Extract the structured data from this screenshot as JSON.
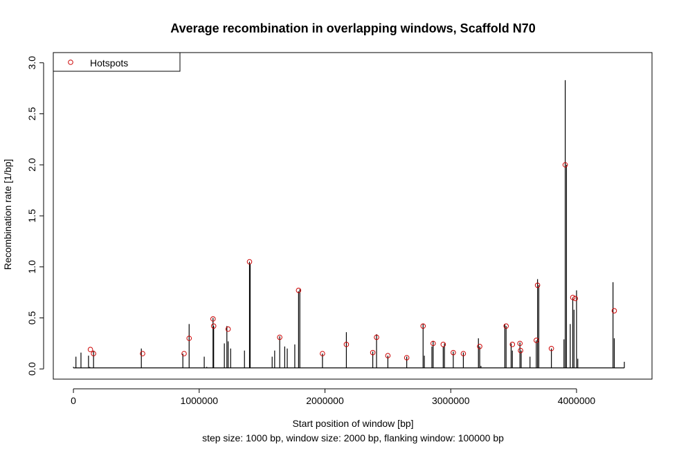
{
  "chart_data": {
    "type": "line",
    "title": "Average recombination in overlapping windows, Scaffold N70",
    "xlabel": "Start position of window [bp]",
    "xlabel_sub": "step size: 1000 bp, window size: 2000 bp, flanking window: 100000 bp",
    "ylabel": "Recombination rate [1/bp]",
    "xlim": [
      -160000,
      4600000
    ],
    "ylim": [
      -0.1,
      3.1
    ],
    "x_ticks": [
      0,
      1000000,
      2000000,
      3000000,
      4000000
    ],
    "x_tick_labels": [
      "0",
      "1000000",
      "2000000",
      "3000000",
      "4000000"
    ],
    "y_ticks": [
      0.0,
      0.5,
      1.0,
      1.5,
      2.0,
      2.5,
      3.0
    ],
    "y_tick_labels": [
      "0.0",
      "0.5",
      "1.0",
      "1.5",
      "2.0",
      "2.5",
      "3.0"
    ],
    "legend": {
      "position": "top-left",
      "entries": [
        "Hotspots"
      ]
    },
    "colors": {
      "series": "#000000",
      "hotspot": "#cc0000"
    },
    "series": [
      {
        "x": [
          0,
          20000,
          30000,
          60000,
          70000,
          120000,
          130000,
          160000,
          170000,
          540000,
          550000,
          870000,
          920000,
          1040000,
          1060000,
          1110000,
          1115000,
          1200000,
          1220000,
          1230000,
          1250000,
          1360000,
          1400000,
          1405000,
          1580000,
          1600000,
          1640000,
          1680000,
          1700000,
          1760000,
          1790000,
          1800000,
          1980000,
          2170000,
          2380000,
          2410000,
          2500000,
          2650000,
          2780000,
          2790000,
          2850000,
          2860000,
          2940000,
          2950000,
          3020000,
          3100000,
          3220000,
          3230000,
          3240000,
          3430000,
          3440000,
          3480000,
          3490000,
          3550000,
          3560000,
          3630000,
          3680000,
          3690000,
          3700000,
          3800000,
          3900000,
          3910000,
          3920000,
          3950000,
          3970000,
          3980000,
          4000000,
          4010000,
          4290000,
          4300000,
          4380000
        ],
        "y": [
          0.02,
          0.12,
          0.01,
          0.16,
          0.01,
          0.13,
          0.02,
          0.18,
          0.01,
          0.2,
          0.01,
          0.15,
          0.44,
          0.12,
          0.02,
          0.5,
          0.42,
          0.25,
          0.42,
          0.27,
          0.2,
          0.18,
          1.05,
          1.03,
          0.12,
          0.18,
          0.32,
          0.22,
          0.2,
          0.24,
          0.76,
          0.78,
          0.15,
          0.36,
          0.17,
          0.34,
          0.13,
          0.12,
          0.44,
          0.13,
          0.22,
          0.27,
          0.22,
          0.25,
          0.17,
          0.16,
          0.3,
          0.22,
          0.03,
          0.44,
          0.42,
          0.25,
          0.18,
          0.26,
          0.18,
          0.12,
          0.28,
          0.88,
          0.82,
          0.2,
          0.29,
          2.83,
          2.0,
          0.44,
          0.7,
          0.58,
          0.77,
          0.1,
          0.85,
          0.3,
          0.07
        ]
      }
    ],
    "hotspots": {
      "name": "Hotspots",
      "x": [
        135000,
        160000,
        550000,
        880000,
        920000,
        1110000,
        1115000,
        1230000,
        1400000,
        1640000,
        1790000,
        1980000,
        2170000,
        2380000,
        2410000,
        2500000,
        2650000,
        2780000,
        2860000,
        2940000,
        3020000,
        3100000,
        3230000,
        3440000,
        3490000,
        3550000,
        3555000,
        3680000,
        3690000,
        3800000,
        3910000,
        3970000,
        3990000,
        4300000
      ],
      "y": [
        0.19,
        0.15,
        0.15,
        0.15,
        0.3,
        0.49,
        0.42,
        0.39,
        1.05,
        0.31,
        0.77,
        0.15,
        0.24,
        0.16,
        0.31,
        0.13,
        0.11,
        0.42,
        0.25,
        0.24,
        0.16,
        0.15,
        0.22,
        0.42,
        0.24,
        0.25,
        0.18,
        0.28,
        0.82,
        0.2,
        2.0,
        0.7,
        0.69,
        0.57
      ]
    }
  }
}
